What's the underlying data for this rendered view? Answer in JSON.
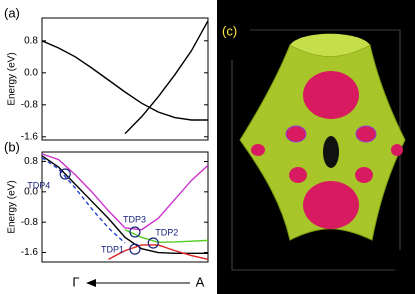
{
  "chart_data": [
    {
      "type": "line",
      "panel_label": "(a)",
      "y_label": "Energy (eV)",
      "x": [
        0,
        0.1,
        0.2,
        0.3,
        0.4,
        0.5,
        0.6,
        0.7,
        0.8,
        0.9,
        1.0
      ],
      "xlim": [
        0,
        1
      ],
      "ylim": [
        -1.68,
        1.37
      ],
      "yticks": [
        0.8,
        {
          "value": 0,
          "label": "0.0"
        },
        -0.8,
        -1.6
      ],
      "series": [
        {
          "color": "#000000",
          "values": [
            0.8,
            0.62,
            0.4,
            0.12,
            -0.18,
            -0.48,
            -0.76,
            -0.98,
            -1.12,
            -1.18,
            -1.18
          ]
        },
        {
          "color": "#000000",
          "values": [
            null,
            null,
            null,
            null,
            null,
            -1.52,
            -1.1,
            -0.6,
            -0.05,
            0.55,
            1.3
          ]
        }
      ]
    },
    {
      "type": "line",
      "panel_label": "(b)",
      "y_label": "Energy (eV)",
      "x": [
        0,
        0.1,
        0.2,
        0.3,
        0.4,
        0.5,
        0.6,
        0.7,
        0.8,
        0.9,
        1.0
      ],
      "xlim": [
        0,
        1
      ],
      "ylim": [
        -1.85,
        1.05
      ],
      "yticks": [
        0.8,
        {
          "value": 0,
          "label": "0.0"
        },
        -0.8,
        -1.6
      ],
      "x_label_left": "Γ",
      "x_label_right": "A",
      "series": [
        {
          "color": "#cc33cc",
          "values": [
            1.0,
            0.85,
            0.45,
            0.0,
            -0.5,
            -0.95,
            -1.0,
            -0.7,
            -0.2,
            0.3,
            0.7
          ]
        },
        {
          "color": "#000000",
          "values": [
            0.95,
            0.65,
            0.2,
            -0.25,
            -0.7,
            -1.2,
            -1.5,
            -1.6,
            -1.62,
            -1.62,
            -1.62
          ]
        },
        {
          "color": "#2244cc",
          "dashed": true,
          "values": [
            0.9,
            0.6,
            0.1,
            -0.45,
            -0.95,
            -1.35,
            null,
            null,
            null,
            null,
            null
          ]
        },
        {
          "color": "#55cc22",
          "values": [
            null,
            null,
            null,
            null,
            null,
            -1.0,
            -1.2,
            -1.33,
            -1.32,
            -1.3,
            -1.28
          ]
        },
        {
          "color": "#dd2222",
          "values": [
            null,
            null,
            null,
            null,
            -1.78,
            -1.55,
            -1.4,
            -1.4,
            -1.55,
            -1.68,
            -1.78
          ]
        }
      ],
      "annotations": [
        {
          "text": "TDP1",
          "x": 0.56,
          "y": -1.51
        },
        {
          "text": "TDP2",
          "x": 0.67,
          "y": -1.35
        },
        {
          "text": "TDP3",
          "x": 0.56,
          "y": -1.06
        },
        {
          "text": "TDP4",
          "x": 0.14,
          "y": 0.47
        }
      ]
    }
  ],
  "panel_c_label": "(c)"
}
